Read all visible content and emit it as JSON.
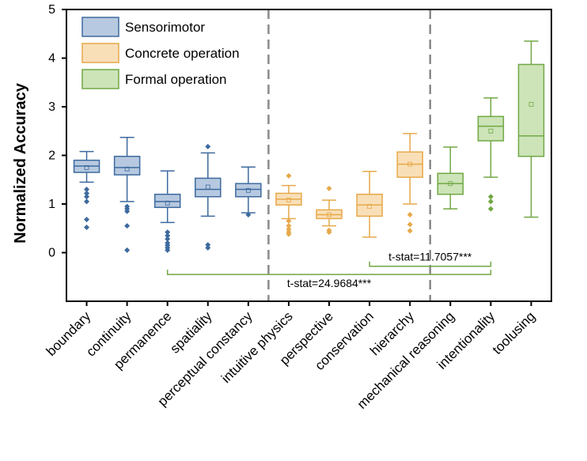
{
  "chart_data": {
    "type": "box",
    "title": "",
    "xlabel": "",
    "ylabel": "Normalized Accuracy",
    "ylim": [
      -1,
      5
    ],
    "yticks": [
      0,
      1,
      2,
      3,
      4,
      5
    ],
    "categories": [
      "boundary",
      "continuity",
      "permanence",
      "spatiality",
      "perceptual constancy",
      "intuitive physics",
      "perspective",
      "conservation",
      "hierarchy",
      "mechanical reasoning",
      "intentionality",
      "toolusing"
    ],
    "groups": [
      {
        "name": "Sensorimotor",
        "stroke": "#3d6a9e",
        "fill": "#b7c9e0",
        "categories": [
          "boundary",
          "continuity",
          "permanence",
          "spatiality",
          "perceptual constancy"
        ]
      },
      {
        "name": "Concrete operation",
        "stroke": "#e6a94a",
        "fill": "#f9dfb8",
        "categories": [
          "intuitive physics",
          "perspective",
          "conservation",
          "hierarchy"
        ]
      },
      {
        "name": "Formal operation",
        "stroke": "#70a844",
        "fill": "#cde3b8",
        "categories": [
          "mechanical reasoning",
          "intentionality",
          "toolusing"
        ]
      }
    ],
    "boxes": [
      {
        "category": "boundary",
        "group": 0,
        "whisker_low": 1.45,
        "q1": 1.65,
        "median": 1.78,
        "q3": 1.9,
        "whisker_high": 2.08,
        "mean": 1.75,
        "outliers": [
          1.3,
          1.22,
          1.15,
          1.05,
          0.68,
          0.52
        ]
      },
      {
        "category": "continuity",
        "group": 0,
        "whisker_low": 1.05,
        "q1": 1.6,
        "median": 1.75,
        "q3": 1.98,
        "whisker_high": 2.37,
        "mean": 1.72,
        "outliers": [
          0.95,
          0.9,
          0.85,
          0.55,
          0.05
        ]
      },
      {
        "category": "permanence",
        "group": 0,
        "whisker_low": 0.62,
        "q1": 0.93,
        "median": 1.05,
        "q3": 1.2,
        "whisker_high": 1.68,
        "mean": 1.02,
        "outliers": [
          0.42,
          0.35,
          0.28,
          0.2,
          0.15,
          0.1,
          0.05
        ]
      },
      {
        "category": "spatiality",
        "group": 0,
        "whisker_low": 0.75,
        "q1": 1.15,
        "median": 1.3,
        "q3": 1.53,
        "whisker_high": 2.05,
        "mean": 1.35,
        "outliers": [
          2.18,
          0.16,
          0.1
        ]
      },
      {
        "category": "perceptual constancy",
        "group": 0,
        "whisker_low": 0.82,
        "q1": 1.15,
        "median": 1.3,
        "q3": 1.42,
        "whisker_high": 1.76,
        "mean": 1.28,
        "outliers": [
          0.78
        ]
      },
      {
        "category": "intuitive physics",
        "group": 1,
        "whisker_low": 0.7,
        "q1": 0.98,
        "median": 1.1,
        "q3": 1.22,
        "whisker_high": 1.38,
        "mean": 1.08,
        "outliers": [
          1.58,
          0.65,
          0.55,
          0.48,
          0.42,
          0.38
        ]
      },
      {
        "category": "perspective",
        "group": 1,
        "whisker_low": 0.55,
        "q1": 0.7,
        "median": 0.78,
        "q3": 0.88,
        "whisker_high": 1.08,
        "mean": 0.78,
        "outliers": [
          1.32,
          0.46,
          0.42
        ]
      },
      {
        "category": "conservation",
        "group": 1,
        "whisker_low": 0.32,
        "q1": 0.75,
        "median": 0.98,
        "q3": 1.2,
        "whisker_high": 1.67,
        "mean": 0.95,
        "outliers": []
      },
      {
        "category": "hierarchy",
        "group": 1,
        "whisker_low": 1.0,
        "q1": 1.55,
        "median": 1.82,
        "q3": 2.07,
        "whisker_high": 2.45,
        "mean": 1.82,
        "outliers": [
          0.78,
          0.58,
          0.45
        ]
      },
      {
        "category": "mechanical reasoning",
        "group": 2,
        "whisker_low": 0.9,
        "q1": 1.2,
        "median": 1.42,
        "q3": 1.63,
        "whisker_high": 2.17,
        "mean": 1.42,
        "outliers": []
      },
      {
        "category": "intentionality",
        "group": 2,
        "whisker_low": 1.55,
        "q1": 2.3,
        "median": 2.6,
        "q3": 2.8,
        "whisker_high": 3.18,
        "mean": 2.5,
        "outliers": [
          1.15,
          1.05,
          0.9
        ]
      },
      {
        "category": "toolusing",
        "group": 2,
        "whisker_low": 0.73,
        "q1": 1.98,
        "median": 2.4,
        "q3": 3.87,
        "whisker_high": 4.35,
        "mean": 3.05,
        "outliers": []
      }
    ],
    "group_separators_after": [
      4,
      8
    ],
    "annotations": [
      {
        "text": "t-stat=11.7057***",
        "from_category": 7,
        "to_category": 10,
        "y": -0.28
      },
      {
        "text": "t-stat=24.9684***",
        "from_category": 2,
        "to_category": 10,
        "y": -0.45
      }
    ],
    "legend": {
      "position": "top-left"
    },
    "grid": false
  }
}
